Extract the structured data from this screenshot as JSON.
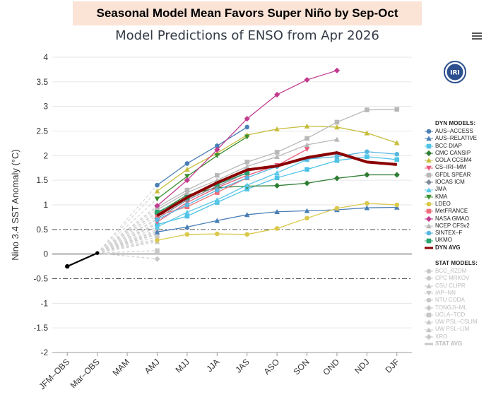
{
  "banner": "Seasonal Model Mean Favors Super Niño by Sep-Oct",
  "chart_data": {
    "type": "line",
    "title": "Model Predictions of ENSO from Apr 2026",
    "ylabel": "Nino 3.4 SST Anomaly (°C)",
    "xlabel": "",
    "categories": [
      "JFM–OBS",
      "Mar–OBS",
      "MAM",
      "AMJ",
      "MJJ",
      "JJA",
      "JAS",
      "ASO",
      "SON",
      "OND",
      "NDJ",
      "DJF"
    ],
    "ylim": [
      -2,
      4
    ],
    "yticks": [
      -2,
      -1.5,
      -1,
      -0.5,
      0,
      0.5,
      1,
      1.5,
      2,
      2.5,
      3,
      3.5,
      4
    ],
    "reference_lines": [
      0.5,
      -0.5
    ],
    "observed": [
      -0.25,
      0.02
    ],
    "legend_headers": {
      "dyn": "DYN MODELS:",
      "stat": "STAT MODELS:"
    },
    "series": [
      {
        "name": "AUS–ACCESS",
        "group": "dyn",
        "color": "#4a7fb6",
        "marker": "circle",
        "values": [
          null,
          null,
          null,
          1.4,
          1.84,
          2.2,
          2.58,
          null,
          null,
          null,
          null,
          null
        ]
      },
      {
        "name": "AUS–RELATIVE",
        "group": "dyn",
        "color": "#4a7fb6",
        "marker": "triangle",
        "values": [
          null,
          null,
          null,
          0.45,
          0.55,
          0.68,
          0.8,
          0.86,
          0.88,
          0.9,
          0.94,
          0.95
        ]
      },
      {
        "name": "BCC DIAP",
        "group": "dyn",
        "color": "#4fc3e6",
        "marker": "square",
        "values": [
          null,
          null,
          null,
          0.6,
          0.77,
          1.05,
          1.32,
          1.55,
          1.72,
          1.9,
          1.98,
          1.92
        ]
      },
      {
        "name": "CMC CANSIP",
        "group": "dyn",
        "color": "#2e7d32",
        "marker": "diamond",
        "values": [
          null,
          null,
          null,
          0.83,
          1.2,
          1.35,
          1.38,
          1.39,
          1.44,
          1.54,
          1.61,
          1.61
        ]
      },
      {
        "name": "COLA CCSM4",
        "group": "dyn",
        "color": "#c7bd3c",
        "marker": "triangle",
        "values": [
          null,
          null,
          null,
          1.28,
          1.72,
          2.05,
          2.42,
          2.54,
          2.6,
          2.58,
          2.46,
          2.26
        ]
      },
      {
        "name": "CS–IRI–MM",
        "group": "dyn",
        "color": "#e85a7a",
        "marker": "triangle-down",
        "values": [
          null,
          null,
          null,
          0.65,
          1.05,
          1.35,
          1.6,
          1.8,
          2.13,
          null,
          null,
          null
        ]
      },
      {
        "name": "GFDL SPEAR",
        "group": "dyn",
        "color": "#b8b8b8",
        "marker": "square",
        "values": [
          null,
          null,
          null,
          0.95,
          1.3,
          1.6,
          1.87,
          2.07,
          2.35,
          2.68,
          2.93,
          2.94
        ]
      },
      {
        "name": "IOCAS ICM",
        "group": "dyn",
        "color": "#7f8b98",
        "marker": "diamond",
        "values": [
          null,
          null,
          null,
          0.72,
          1.1,
          1.38,
          1.65,
          null,
          null,
          null,
          null,
          null
        ]
      },
      {
        "name": "JMA",
        "group": "dyn",
        "color": "#5bc8e8",
        "marker": "triangle",
        "values": [
          null,
          null,
          null,
          0.55,
          0.85,
          1.1,
          1.4,
          1.65,
          1.92,
          2.05,
          null,
          null
        ]
      },
      {
        "name": "KMA",
        "group": "dyn",
        "color": "#3a8f2f",
        "marker": "triangle-down",
        "values": [
          null,
          null,
          null,
          1.12,
          1.58,
          2.0,
          2.38,
          null,
          null,
          null,
          null,
          null
        ]
      },
      {
        "name": "LDEO",
        "group": "dyn",
        "color": "#d9c84a",
        "marker": "circle",
        "values": [
          null,
          null,
          null,
          0.28,
          0.4,
          0.41,
          0.4,
          0.52,
          0.73,
          0.93,
          1.03,
          1.0
        ]
      },
      {
        "name": "MetFRANCE",
        "group": "dyn",
        "color": "#ee6e7c",
        "marker": "square",
        "values": [
          null,
          null,
          null,
          0.78,
          0.96,
          1.25,
          1.55,
          null,
          null,
          null,
          null,
          null
        ]
      },
      {
        "name": "NASA GMAO",
        "group": "dyn",
        "color": "#c23c8e",
        "marker": "diamond",
        "values": [
          null,
          null,
          null,
          0.98,
          1.5,
          2.12,
          2.75,
          3.24,
          3.54,
          3.73,
          null,
          null
        ]
      },
      {
        "name": "NCEP CFSv2",
        "group": "dyn",
        "color": "#b8b8b8",
        "marker": "triangle",
        "values": [
          null,
          null,
          null,
          0.9,
          1.25,
          1.5,
          1.78,
          1.98,
          2.22,
          2.33,
          null,
          null
        ]
      },
      {
        "name": "SINTEX–F",
        "group": "dyn",
        "color": "#56b7e0",
        "marker": "circle",
        "values": [
          null,
          null,
          null,
          0.7,
          1.0,
          1.3,
          1.55,
          1.78,
          1.93,
          1.98,
          2.08,
          2.03
        ]
      },
      {
        "name": "UKMO",
        "group": "dyn",
        "color": "#2aa36e",
        "marker": "square",
        "values": [
          null,
          null,
          null,
          0.85,
          1.15,
          1.42,
          1.65,
          null,
          null,
          null,
          null,
          null
        ]
      },
      {
        "name": "DYN AVG",
        "group": "dyn",
        "color": "#8b0000",
        "marker": "line",
        "bold": true,
        "values": [
          null,
          null,
          null,
          0.78,
          1.15,
          1.45,
          1.71,
          1.79,
          1.96,
          2.06,
          1.87,
          1.82
        ]
      },
      {
        "name": "BCC_RZDM",
        "group": "stat",
        "color": "#cccccc",
        "marker": "circle",
        "values": [
          null,
          null,
          null,
          0.55,
          null,
          null,
          null,
          null,
          null,
          null,
          null,
          null
        ]
      },
      {
        "name": "CPC MRKOV",
        "group": "stat",
        "color": "#cccccc",
        "marker": "circle",
        "values": [
          null,
          null,
          null,
          0.35,
          null,
          null,
          null,
          null,
          null,
          null,
          null,
          null
        ]
      },
      {
        "name": "CSU CLIPR",
        "group": "stat",
        "color": "#cccccc",
        "marker": "triangle",
        "values": [
          null,
          null,
          null,
          0.62,
          null,
          null,
          null,
          null,
          null,
          null,
          null,
          null
        ]
      },
      {
        "name": "IAP–NN",
        "group": "stat",
        "color": "#cccccc",
        "marker": "triangle-down",
        "values": [
          null,
          null,
          null,
          0.3,
          null,
          null,
          null,
          null,
          null,
          null,
          null,
          null
        ]
      },
      {
        "name": "NTU CODA",
        "group": "stat",
        "color": "#cccccc",
        "marker": "circle",
        "values": [
          null,
          null,
          null,
          0.5,
          null,
          null,
          null,
          null,
          null,
          null,
          null,
          null
        ]
      },
      {
        "name": "TONGJI–ML",
        "group": "stat",
        "color": "#cccccc",
        "marker": "diamond",
        "values": [
          null,
          null,
          null,
          -0.1,
          null,
          null,
          null,
          null,
          null,
          null,
          null,
          null
        ]
      },
      {
        "name": "UCLA–TCD",
        "group": "stat",
        "color": "#cccccc",
        "marker": "square",
        "values": [
          null,
          null,
          null,
          0.07,
          null,
          null,
          null,
          null,
          null,
          null,
          null,
          null
        ]
      },
      {
        "name": "UW PSL–CSLIM",
        "group": "stat",
        "color": "#cccccc",
        "marker": "triangle",
        "values": [
          null,
          null,
          null,
          0.42,
          null,
          null,
          null,
          null,
          null,
          null,
          null,
          null
        ]
      },
      {
        "name": "UW PSL–LIM",
        "group": "stat",
        "color": "#cccccc",
        "marker": "triangle",
        "values": [
          null,
          null,
          null,
          0.25,
          null,
          null,
          null,
          null,
          null,
          null,
          null,
          null
        ]
      },
      {
        "name": "XRO",
        "group": "stat",
        "color": "#cccccc",
        "marker": "diamond",
        "values": [
          null,
          null,
          null,
          0.47,
          null,
          null,
          null,
          null,
          null,
          null,
          null,
          null
        ]
      },
      {
        "name": "STAT AVG",
        "group": "stat",
        "color": "#cccccc",
        "marker": "line",
        "bold": true,
        "values": [
          null,
          null,
          null,
          0.4,
          null,
          null,
          null,
          null,
          null,
          null,
          null,
          null
        ]
      }
    ]
  },
  "logo_text": "IRI",
  "colors": {
    "banner_bg": "#fbe3d6",
    "obs_line": "#000000",
    "grid": "#e6e6e6"
  }
}
